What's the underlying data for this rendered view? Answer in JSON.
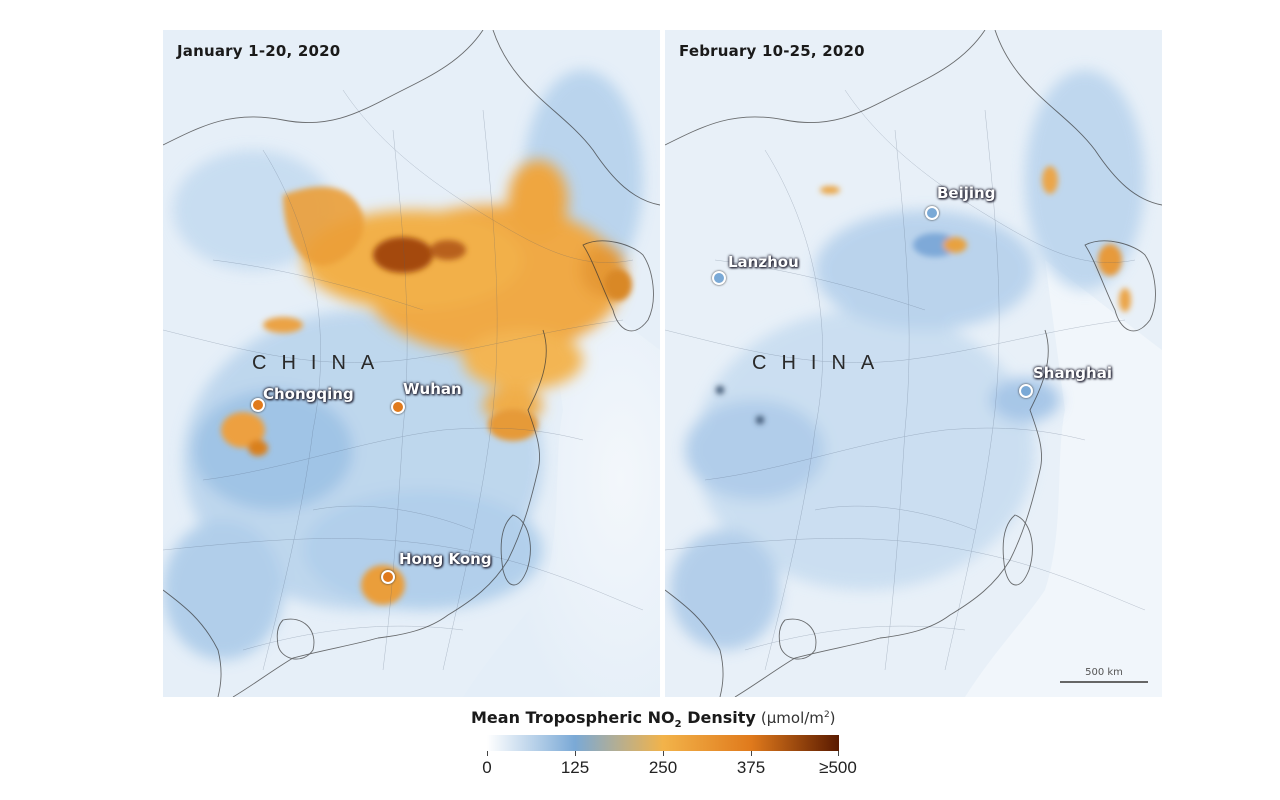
{
  "panels": [
    {
      "title": "January 1-20, 2020",
      "country_label": "CHINA",
      "cities": [
        {
          "name": "Chongqing"
        },
        {
          "name": "Wuhan"
        },
        {
          "name": "Hong Kong"
        }
      ]
    },
    {
      "title": "February 10-25, 2020",
      "country_label": "CHINA",
      "cities": [
        {
          "name": "Beijing"
        },
        {
          "name": "Lanzhou"
        },
        {
          "name": "Shanghai"
        }
      ],
      "scalebar": "500 km"
    }
  ],
  "legend": {
    "title_main": "Mean Tropospheric NO",
    "title_sub": "2",
    "title_suffix": " Density",
    "unit_main": "(µmol/m",
    "unit_sup": "2",
    "unit_close": ")",
    "ticks": [
      "0",
      "125",
      "250",
      "375",
      "≥500"
    ],
    "colors": [
      "#ffffff",
      "#7aa9d6",
      "#f2b34a",
      "#e07a1c",
      "#5a1a00"
    ]
  }
}
